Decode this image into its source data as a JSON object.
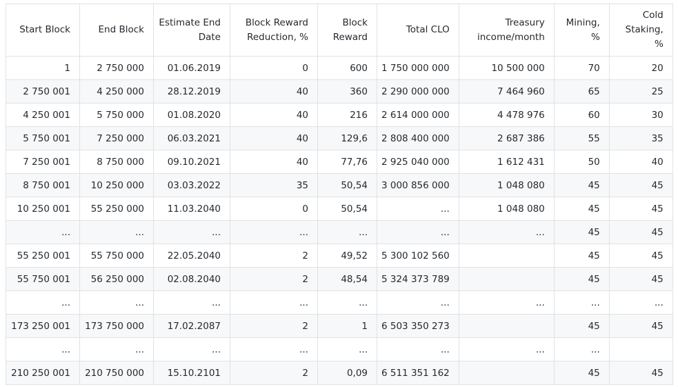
{
  "table": {
    "headers": [
      "Start Block",
      "End Block",
      "Estimate End Date",
      "Block Reward Reduction, %",
      "Block Reward",
      "Total CLO",
      "Treasury income/month",
      "Mining, %",
      "Cold Staking, %"
    ],
    "rows": [
      [
        "1",
        "2 750 000",
        "01.06.2019",
        "0",
        "600",
        "1 750 000 000",
        "10 500 000",
        "70",
        "20"
      ],
      [
        "2 750 001",
        "4 250 000",
        "28.12.2019",
        "40",
        "360",
        "2 290 000 000",
        "7 464 960",
        "65",
        "25"
      ],
      [
        "4 250 001",
        "5 750 000",
        "01.08.2020",
        "40",
        "216",
        "2 614 000 000",
        "4 478 976",
        "60",
        "30"
      ],
      [
        "5 750 001",
        "7 250 000",
        "06.03.2021",
        "40",
        "129,6",
        "2 808 400 000",
        "2 687 386",
        "55",
        "35"
      ],
      [
        "7 250 001",
        "8 750 000",
        "09.10.2021",
        "40",
        "77,76",
        "2 925 040 000",
        "1 612 431",
        "50",
        "40"
      ],
      [
        "8 750 001",
        "10 250 000",
        "03.03.2022",
        "35",
        "50,54",
        "3 000 856 000",
        "1 048 080",
        "45",
        "45"
      ],
      [
        "10 250 001",
        "55 250 000",
        "11.03.2040",
        "0",
        "50,54",
        "...",
        "1 048 080",
        "45",
        "45"
      ],
      [
        "...",
        "...",
        "...",
        "...",
        "...",
        "...",
        "...",
        "45",
        "45"
      ],
      [
        "55 250 001",
        "55 750 000",
        "22.05.2040",
        "2",
        "49,52",
        "5 300 102 560",
        "",
        "45",
        "45"
      ],
      [
        "55 750 001",
        "56 250 000",
        "02.08.2040",
        "2",
        "48,54",
        "5 324 373 789",
        "",
        "45",
        "45"
      ],
      [
        "...",
        "...",
        "...",
        "...",
        "...",
        "...",
        "...",
        "...",
        "..."
      ],
      [
        "173 250 001",
        "173 750 000",
        "17.02.2087",
        "2",
        "1",
        "6 503 350 273",
        "",
        "45",
        "45"
      ],
      [
        "...",
        "...",
        "...",
        "...",
        "...",
        "...",
        "...",
        "...",
        ""
      ],
      [
        "210 250 001",
        "210 750 000",
        "15.10.2101",
        "2",
        "0,09",
        "6 511 351 162",
        "",
        "45",
        "45"
      ]
    ]
  }
}
